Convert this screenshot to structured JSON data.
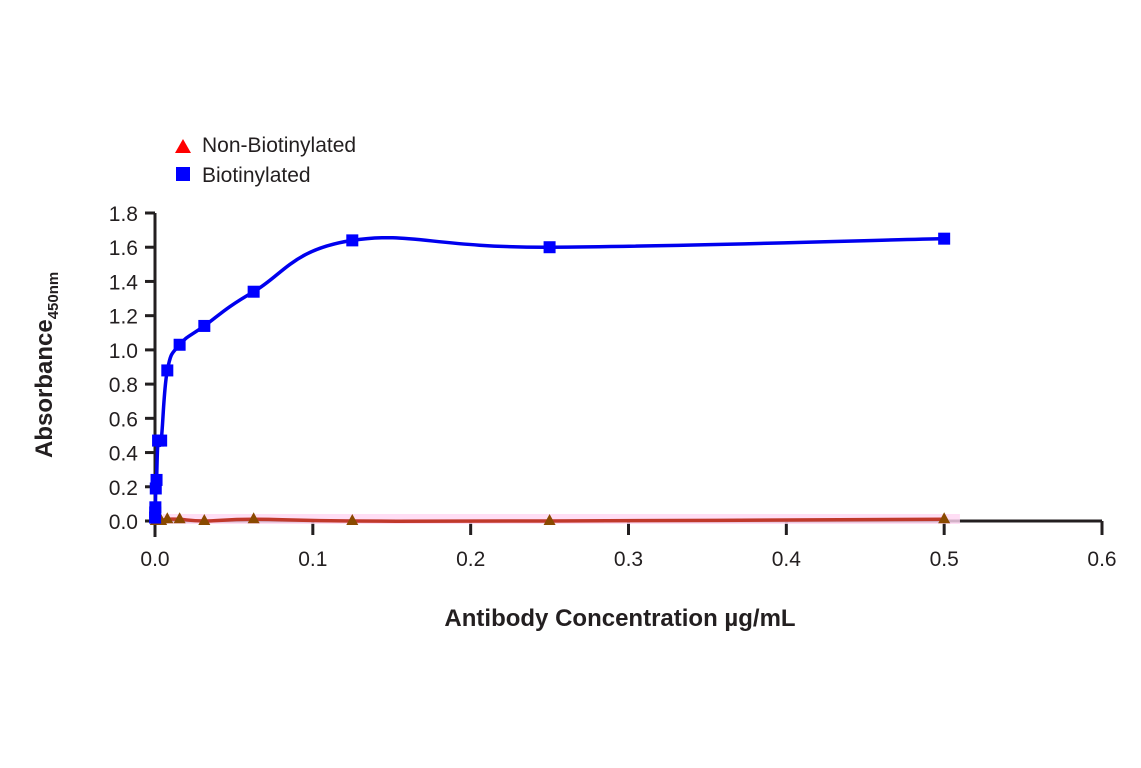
{
  "chart_data": {
    "type": "line",
    "title": "",
    "xlabel": "Antibody Concentration µg/mL",
    "ylabel": "Absorbance",
    "ylabel_subscript": "450nm",
    "xlim": [
      0.0,
      0.6
    ],
    "ylim": [
      0.0,
      1.8
    ],
    "x_ticks": [
      "0.0",
      "0.1",
      "0.2",
      "0.3",
      "0.4",
      "0.5",
      "0.6"
    ],
    "y_ticks": [
      "0.0",
      "0.2",
      "0.4",
      "0.6",
      "0.8",
      "1.0",
      "1.2",
      "1.4",
      "1.6",
      "1.8"
    ],
    "grid": false,
    "legend_position": "top-left",
    "series": [
      {
        "name": "Non-Biotinylated",
        "marker": "triangle",
        "color": "#ff0000",
        "line_color": "#c0392b",
        "x": [
          0.00049,
          0.00098,
          0.00195,
          0.0039,
          0.0078,
          0.0156,
          0.03125,
          0.0625,
          0.125,
          0.25,
          0.5
        ],
        "y": [
          0.0,
          0.0,
          0.0,
          0.0,
          0.01,
          0.01,
          0.0,
          0.01,
          0.0,
          0.0,
          0.01
        ]
      },
      {
        "name": "Biotinylated",
        "marker": "square",
        "color": "#0000ff",
        "line_color": "#0000ee",
        "x": [
          6e-05,
          0.00012,
          0.00024,
          0.00049,
          0.00098,
          0.00195,
          0.0039,
          0.0078,
          0.0156,
          0.03125,
          0.0625,
          0.125,
          0.25,
          0.5
        ],
        "y": [
          0.02,
          0.05,
          0.08,
          0.19,
          0.24,
          0.47,
          0.47,
          0.88,
          1.03,
          1.14,
          1.34,
          1.64,
          1.6,
          1.65
        ]
      }
    ]
  },
  "legend": {
    "items": [
      {
        "label": "Non-Biotinylated",
        "marker": "triangle",
        "color": "#ff0000"
      },
      {
        "label": "Biotinylated",
        "marker": "square",
        "color": "#0000ff"
      }
    ]
  },
  "axes": {
    "x_title": "Antibody Concentration µg/mL",
    "y_title": "Absorbance",
    "y_title_sub": "450nm"
  }
}
